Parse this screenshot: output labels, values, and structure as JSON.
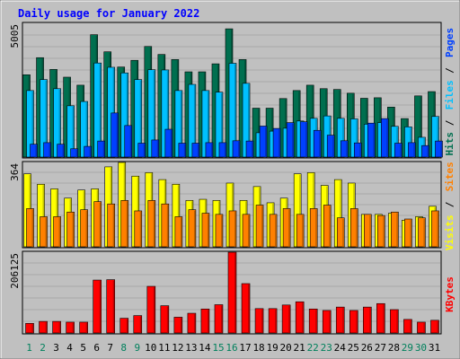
{
  "chart_data": {
    "type": "bar",
    "title": "Daily usage for January 2022",
    "categories": [
      "1",
      "2",
      "3",
      "4",
      "5",
      "6",
      "7",
      "8",
      "9",
      "10",
      "11",
      "12",
      "13",
      "14",
      "15",
      "16",
      "17",
      "18",
      "19",
      "20",
      "21",
      "22",
      "23",
      "24",
      "25",
      "26",
      "27",
      "28",
      "29",
      "30",
      "31"
    ],
    "weekend_days": [
      "1",
      "2",
      "8",
      "9",
      "15",
      "16",
      "22",
      "23",
      "29",
      "30"
    ],
    "panels": [
      {
        "ylabel_max": "5005",
        "ylim": [
          0,
          5005
        ],
        "series": [
          {
            "name": "Hits",
            "color": "#006F4F",
            "values": [
              3080,
              3720,
              3280,
              2990,
              2690,
              4580,
              3940,
              3370,
              3620,
              4140,
              3840,
              3650,
              3190,
              3190,
              3490,
              4800,
              3650,
              1830,
              1830,
              2190,
              2490,
              2690,
              2560,
              2530,
              2390,
              2200,
              2220,
              1870,
              1440,
              2290,
              2450
            ]
          },
          {
            "name": "Files",
            "color": "#00C0FF",
            "values": [
              2490,
              2900,
              2560,
              1920,
              2080,
              3520,
              3360,
              3150,
              2900,
              3270,
              3260,
              2490,
              2720,
              2490,
              2430,
              3510,
              2760,
              910,
              970,
              1080,
              1350,
              1450,
              1540,
              1450,
              1430,
              1230,
              1290,
              1150,
              1130,
              740,
              1520
            ]
          },
          {
            "name": "Pages",
            "color": "#0040FF",
            "values": [
              480,
              540,
              480,
              310,
              400,
              600,
              1650,
              1180,
              520,
              640,
              1040,
              520,
              520,
              540,
              540,
              610,
              600,
              1160,
              1070,
              1290,
              1320,
              1000,
              820,
              610,
              530,
              1270,
              1440,
              520,
              540,
              430,
              600
            ]
          }
        ]
      },
      {
        "ylabel_max": "364",
        "ylim": [
          0,
          364
        ],
        "series": [
          {
            "name": "Visits",
            "color": "#FFFF00",
            "values": [
              315,
              270,
              250,
              210,
              245,
              250,
              345,
              365,
              305,
              320,
              290,
              270,
              200,
              205,
              200,
              275,
              200,
              260,
              190,
              210,
              315,
              320,
              265,
              290,
              275,
              140,
              140,
              145,
              115,
              130,
              175
            ]
          },
          {
            "name": "Sites",
            "color": "#FF8000",
            "values": [
              165,
              130,
              130,
              150,
              160,
              195,
              185,
              200,
              155,
              200,
              185,
              130,
              160,
              145,
              140,
              155,
              140,
              180,
              140,
              165,
              140,
              165,
              180,
              125,
              165,
              140,
              135,
              150,
              120,
              125,
              155
            ]
          }
        ]
      },
      {
        "ylabel_max": "206125",
        "ylim": [
          0,
          206125
        ],
        "series": [
          {
            "name": "KBytes",
            "color": "#FF0000",
            "values": [
              24500,
              29500,
              29500,
              27600,
              27600,
              135000,
              136000,
              37600,
              44400,
              119000,
              69600,
              40300,
              50300,
              61200,
              72200,
              206000,
              126000,
              62200,
              62200,
              71400,
              79600,
              61200,
              57400,
              66100,
              57400,
              66100,
              75000,
              59600,
              34600,
              27600,
              32400
            ]
          }
        ]
      }
    ],
    "grid": true,
    "legend": "right side, vertical"
  }
}
